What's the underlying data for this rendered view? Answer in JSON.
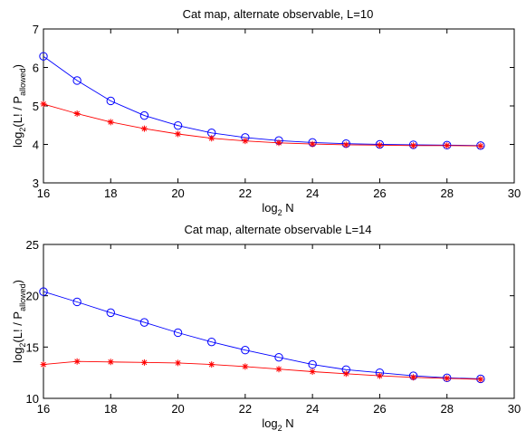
{
  "chart_data": [
    {
      "type": "line",
      "title": "Cat map, alternate observable, L=10",
      "xlabel": {
        "base": "log",
        "sub": "2",
        "rest": " N"
      },
      "ylabel": {
        "pre": "log",
        "sub1": "2",
        "mid": "(L! / P",
        "sub2": "allowed",
        "post": ")"
      },
      "xlim": [
        16,
        30
      ],
      "ylim": [
        3,
        7
      ],
      "xticks": [
        16,
        18,
        20,
        22,
        24,
        26,
        28,
        30
      ],
      "yticks": [
        3,
        4,
        5,
        6,
        7
      ],
      "x": [
        16,
        17,
        18,
        19,
        20,
        21,
        22,
        23,
        24,
        25,
        26,
        27,
        28,
        29
      ],
      "series": [
        {
          "color": "#0000ff",
          "marker": "circle",
          "values": [
            6.29,
            5.66,
            5.13,
            4.75,
            4.49,
            4.3,
            4.18,
            4.1,
            4.05,
            4.02,
            4.0,
            3.99,
            3.98,
            3.97
          ]
        },
        {
          "color": "#ff0000",
          "marker": "star",
          "values": [
            5.05,
            4.8,
            4.58,
            4.41,
            4.27,
            4.16,
            4.09,
            4.04,
            4.01,
            3.99,
            3.98,
            3.97,
            3.97,
            3.96
          ]
        }
      ]
    },
    {
      "type": "line",
      "title": "Cat map, alternate observable L=14",
      "xlabel": {
        "base": "log",
        "sub": "2",
        "rest": " N"
      },
      "ylabel": {
        "pre": "log",
        "sub1": "2",
        "mid": "(L! / P",
        "sub2": "allowed",
        "post": ")"
      },
      "xlim": [
        16,
        30
      ],
      "ylim": [
        10,
        25
      ],
      "xticks": [
        16,
        18,
        20,
        22,
        24,
        26,
        28,
        30
      ],
      "yticks": [
        10,
        15,
        20,
        25
      ],
      "x": [
        16,
        17,
        18,
        19,
        20,
        21,
        22,
        23,
        24,
        25,
        26,
        27,
        28,
        29
      ],
      "series": [
        {
          "color": "#0000ff",
          "marker": "circle",
          "values": [
            20.4,
            19.4,
            18.35,
            17.4,
            16.4,
            15.5,
            14.7,
            14.0,
            13.3,
            12.8,
            12.5,
            12.2,
            12.0,
            11.9
          ]
        },
        {
          "color": "#ff0000",
          "marker": "star",
          "values": [
            13.3,
            13.6,
            13.55,
            13.5,
            13.45,
            13.3,
            13.1,
            12.85,
            12.6,
            12.4,
            12.2,
            12.05,
            11.95,
            11.85
          ]
        }
      ]
    }
  ]
}
